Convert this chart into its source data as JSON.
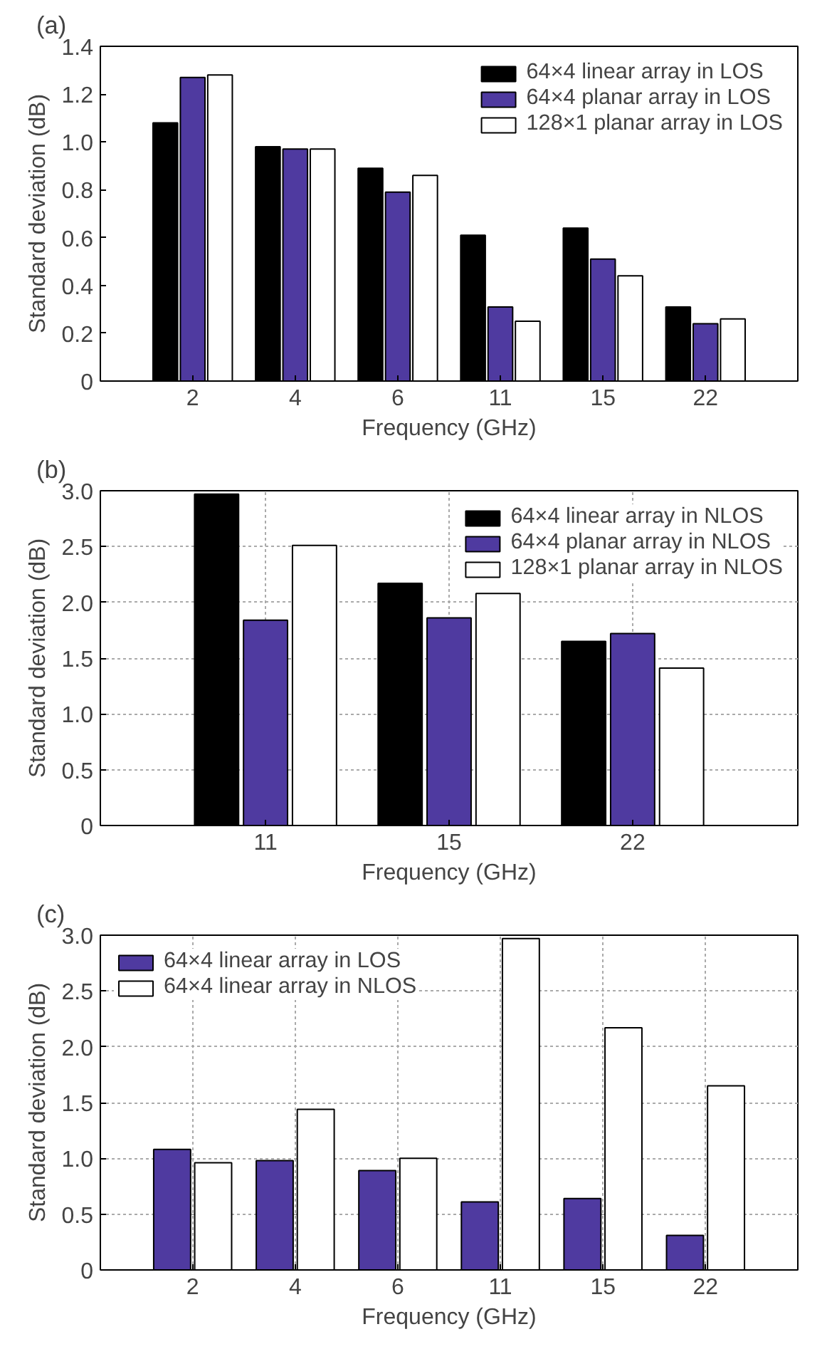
{
  "chart_data": [
    {
      "type": "bar",
      "title": "(a)",
      "xlabel": "Frequency (GHz)",
      "ylabel": "Standard deviation (dB)",
      "categories": [
        "2",
        "4",
        "6",
        "11",
        "15",
        "22"
      ],
      "ylim": [
        0,
        1.4
      ],
      "yticks": [
        0,
        0.2,
        0.4,
        0.6,
        0.8,
        {
          "value": 1,
          "label": "1.0"
        },
        1.2,
        1.4
      ],
      "grid": false,
      "legend": "top right",
      "series": [
        {
          "name": "64×4 linear array in LOS",
          "color": "#000000",
          "values": [
            1.08,
            0.98,
            0.89,
            0.61,
            0.64,
            0.31
          ]
        },
        {
          "name": "64×4 planar array in LOS",
          "color": "#4f3aa0",
          "values": [
            1.27,
            0.97,
            0.79,
            0.31,
            0.51,
            0.24
          ]
        },
        {
          "name": "128×1 planar array in LOS",
          "color": "#ffffff",
          "values": [
            1.28,
            0.97,
            0.86,
            0.25,
            0.44,
            0.26
          ]
        }
      ]
    },
    {
      "type": "bar",
      "title": "(b)",
      "xlabel": "Frequency (GHz)",
      "ylabel": "Standard deviation (dB)",
      "categories": [
        "11",
        "15",
        "22"
      ],
      "ylim": [
        0,
        3
      ],
      "yticks": [
        0,
        0.5,
        {
          "value": 1,
          "label": "1.0"
        },
        1.5,
        {
          "value": 2,
          "label": "2.0"
        },
        2.5,
        {
          "value": 3,
          "label": "3.0"
        }
      ],
      "grid": true,
      "legend": "top right",
      "series": [
        {
          "name": "64×4 linear array in NLOS",
          "color": "#000000",
          "values": [
            2.97,
            2.17,
            1.65
          ]
        },
        {
          "name": "64×4 planar array in NLOS",
          "color": "#4f3aa0",
          "values": [
            1.84,
            1.86,
            1.72
          ]
        },
        {
          "name": "128×1 planar array in NLOS",
          "color": "#ffffff",
          "values": [
            2.51,
            2.08,
            1.41
          ]
        }
      ]
    },
    {
      "type": "bar",
      "title": "(c)",
      "xlabel": "Frequency (GHz)",
      "ylabel": "Standard deviation (dB)",
      "categories": [
        "2",
        "4",
        "6",
        "11",
        "15",
        "22"
      ],
      "ylim": [
        0,
        3
      ],
      "yticks": [
        0,
        0.5,
        {
          "value": 1,
          "label": "1.0"
        },
        1.5,
        {
          "value": 2,
          "label": "2.0"
        },
        2.5,
        {
          "value": 3,
          "label": "3.0"
        }
      ],
      "grid": true,
      "legend": "top left",
      "series": [
        {
          "name": "64×4 linear array in LOS",
          "color": "#4f3aa0",
          "values": [
            1.08,
            0.98,
            0.89,
            0.61,
            0.64,
            0.31
          ]
        },
        {
          "name": "64×4 linear array in NLOS",
          "color": "#ffffff",
          "values": [
            0.96,
            1.44,
            1.0,
            2.97,
            2.17,
            1.65
          ]
        }
      ]
    }
  ]
}
